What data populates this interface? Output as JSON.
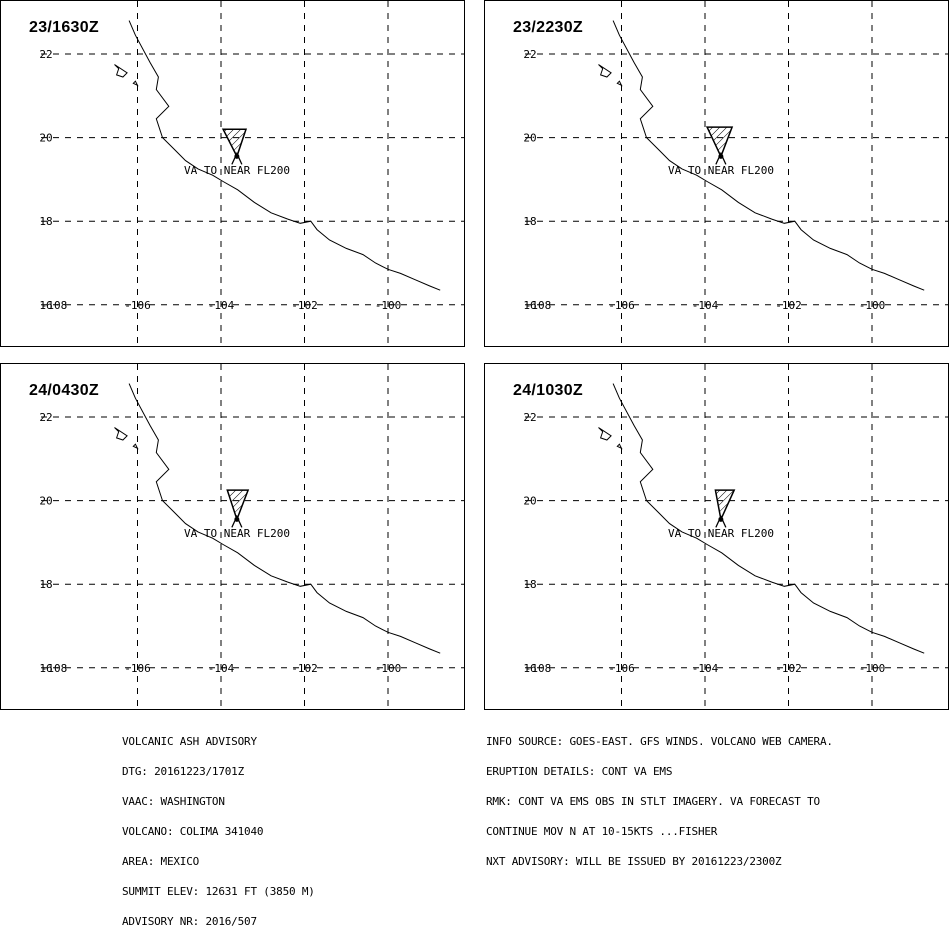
{
  "panels": [
    {
      "time": "23/1630Z",
      "label": "VA TO NEAR FL200"
    },
    {
      "time": "23/2230Z",
      "label": "VA TO NEAR FL200"
    },
    {
      "time": "24/0430Z",
      "label": "VA TO NEAR FL200"
    },
    {
      "time": "24/1030Z",
      "label": "VA TO NEAR FL200"
    }
  ],
  "axes": {
    "longitude_ticks": [
      "-108",
      "-106",
      "-104",
      "-102",
      "-100"
    ],
    "latitude_ticks": [
      "22",
      "20",
      "18",
      "16"
    ]
  },
  "advisory_left": [
    "VOLCANIC ASH ADVISORY",
    "DTG: 20161223/1701Z",
    "VAAC: WASHINGTON",
    "VOLCANO: COLIMA 341040",
    "AREA: MEXICO",
    "SUMMIT ELEV: 12631 FT (3850 M)",
    "ADVISORY NR: 2016/507"
  ],
  "advisory_right": [
    "INFO SOURCE: GOES-EAST. GFS WINDS. VOLCANO WEB CAMERA.",
    "ERUPTION DETAILS: CONT VA EMS",
    "RMK: CONT VA EMS OBS IN STLT IMAGERY. VA FORECAST TO",
    "CONTINUE MOV N AT 10-15KTS ...FISHER",
    "NXT ADVISORY: WILL BE ISSUED BY 20161223/2300Z"
  ]
}
